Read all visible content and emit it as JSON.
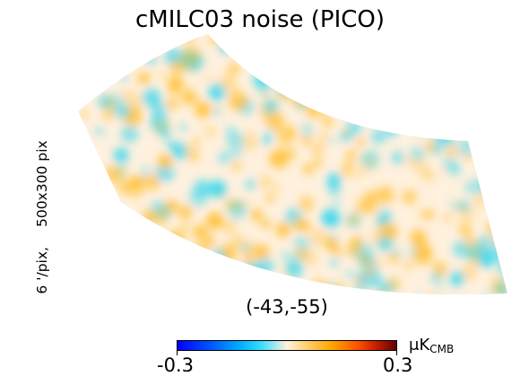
{
  "title": "cMILC03 noise (PICO)",
  "side_label": {
    "resolution": "6 '/pix,",
    "size": "500x300 pix"
  },
  "coordinates": "(-43,-55)",
  "colorbar": {
    "min_label": "-0.3",
    "max_label": "0.3",
    "unit_prefix": "μK",
    "unit_sub": "CMB",
    "colors": [
      "#0000ff",
      "#00aaff",
      "#33ddff",
      "#fff1de",
      "#ffcc66",
      "#ffaa00",
      "#ff5500",
      "#660000"
    ]
  },
  "map": {
    "background_color": "#fff1de",
    "positive_color": "#ffbf33",
    "negative_color": "#33d6f0"
  }
}
